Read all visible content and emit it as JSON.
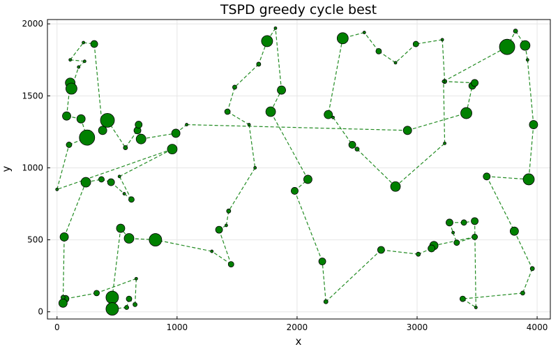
{
  "chart_data": {
    "type": "scatter",
    "title": "TSPD greedy cycle best",
    "xlabel": "x",
    "ylabel": "y",
    "xlim": [
      -80,
      4110
    ],
    "ylim": [
      -50,
      2030
    ],
    "xticks": [
      0,
      1000,
      2000,
      3000,
      4000
    ],
    "yticks": [
      0,
      500,
      1000,
      1500,
      2000
    ],
    "grid": true,
    "legend": "none",
    "colors": {
      "marker": "#008000",
      "line": "#228B22",
      "marker_edge": "#000000"
    },
    "series": [
      {
        "style": "dashed-line-with-markers",
        "points": [
          [
            0,
            850,
            2
          ],
          [
            100,
            1160,
            4
          ],
          [
            250,
            1210,
            11
          ],
          [
            200,
            1340,
            6
          ],
          [
            80,
            1360,
            6
          ],
          [
            110,
            1590,
            7
          ],
          [
            120,
            1550,
            8
          ],
          [
            180,
            1700,
            2
          ],
          [
            230,
            1740,
            2
          ],
          [
            110,
            1750,
            2
          ],
          [
            220,
            1870,
            2
          ],
          [
            310,
            1860,
            5
          ],
          [
            380,
            1260,
            6
          ],
          [
            420,
            1330,
            10
          ],
          [
            570,
            1140,
            3
          ],
          [
            670,
            1260,
            5
          ],
          [
            680,
            1300,
            5
          ],
          [
            700,
            1200,
            7
          ],
          [
            990,
            1240,
            6
          ],
          [
            1080,
            1300,
            2
          ],
          [
            2920,
            1260,
            6
          ],
          [
            3410,
            1380,
            8
          ],
          [
            3460,
            1570,
            5
          ],
          [
            3480,
            1590,
            5
          ],
          [
            3230,
            1600,
            3
          ],
          [
            3210,
            1890,
            2
          ],
          [
            2990,
            1860,
            4
          ],
          [
            2820,
            1730,
            2
          ],
          [
            2680,
            1810,
            4
          ],
          [
            2560,
            1940,
            2
          ],
          [
            2380,
            1900,
            8
          ],
          [
            2260,
            1370,
            6
          ],
          [
            2300,
            1350,
            2
          ],
          [
            2460,
            1160,
            5
          ],
          [
            2500,
            1130,
            3
          ],
          [
            2820,
            870,
            7
          ],
          [
            3230,
            1170,
            2
          ],
          [
            3220,
            1600,
            2
          ],
          [
            3750,
            1840,
            11
          ],
          [
            3820,
            1950,
            3
          ],
          [
            3900,
            1850,
            7
          ],
          [
            3920,
            1750,
            2
          ],
          [
            3970,
            1300,
            6
          ],
          [
            3930,
            920,
            8
          ],
          [
            3580,
            940,
            5
          ],
          [
            3810,
            560,
            6
          ],
          [
            3960,
            300,
            3
          ],
          [
            3880,
            130,
            3
          ],
          [
            3380,
            90,
            4
          ],
          [
            3490,
            30,
            2
          ],
          [
            3480,
            630,
            5
          ],
          [
            3390,
            620,
            4
          ],
          [
            3270,
            620,
            5
          ],
          [
            3300,
            550,
            2
          ],
          [
            3330,
            480,
            4
          ],
          [
            3480,
            520,
            4
          ],
          [
            3140,
            460,
            6
          ],
          [
            3120,
            440,
            5
          ],
          [
            3010,
            400,
            3
          ],
          [
            2700,
            430,
            5
          ],
          [
            2240,
            70,
            3
          ],
          [
            2210,
            350,
            5
          ],
          [
            1980,
            840,
            5
          ],
          [
            2090,
            920,
            6
          ],
          [
            1780,
            1390,
            7
          ],
          [
            1870,
            1540,
            6
          ],
          [
            1820,
            1970,
            2
          ],
          [
            1750,
            1880,
            8
          ],
          [
            1680,
            1720,
            3
          ],
          [
            1480,
            1560,
            3
          ],
          [
            1420,
            1390,
            4
          ],
          [
            1600,
            1300,
            2
          ],
          [
            1650,
            1000,
            2
          ],
          [
            1430,
            700,
            3
          ],
          [
            1410,
            600,
            2
          ],
          [
            1350,
            570,
            5
          ],
          [
            1450,
            330,
            4
          ],
          [
            1290,
            420,
            2
          ],
          [
            820,
            500,
            9
          ],
          [
            600,
            510,
            7
          ],
          [
            530,
            580,
            6
          ],
          [
            460,
            100,
            9
          ],
          [
            460,
            20,
            9
          ],
          [
            580,
            30,
            3
          ],
          [
            600,
            90,
            4
          ],
          [
            650,
            50,
            3
          ],
          [
            660,
            230,
            2
          ],
          [
            330,
            130,
            4
          ],
          [
            70,
            90,
            5
          ],
          [
            50,
            100,
            3
          ],
          [
            50,
            60,
            6
          ],
          [
            60,
            520,
            6
          ],
          [
            240,
            900,
            7
          ],
          [
            370,
            920,
            4
          ],
          [
            450,
            900,
            5
          ],
          [
            560,
            820,
            2
          ],
          [
            620,
            780,
            4
          ],
          [
            520,
            940,
            2
          ],
          [
            960,
            1130,
            7
          ]
        ]
      }
    ]
  }
}
